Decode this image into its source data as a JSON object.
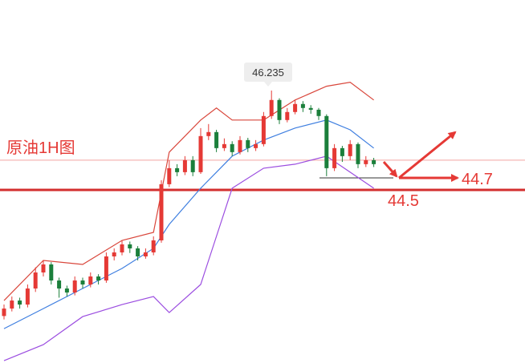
{
  "chart_data": {
    "type": "candlestick",
    "title": "原油1H图",
    "annotations": {
      "peak": "46.235",
      "target": "44.7",
      "support": "44.5"
    },
    "ylim": [
      41.48,
      47.815
    ],
    "up_color": "#e53935",
    "down_color": "#1b7f3b",
    "open": [
      42.3,
      42.43,
      42.57,
      42.5,
      42.78,
      43.06,
      43.2,
      42.92,
      42.78,
      42.71,
      42.92,
      42.85,
      42.99,
      42.92,
      43.34,
      43.41,
      43.55,
      43.48,
      43.34,
      43.41,
      43.62,
      44.6,
      44.88,
      44.81,
      45.02,
      44.81,
      45.44,
      45.51,
      45.23,
      45.3,
      45.16,
      45.37,
      45.23,
      45.3,
      45.79,
      46.07,
      45.72,
      45.86,
      46.0,
      45.93,
      45.9,
      45.79,
      44.88,
      45.23,
      45.09,
      45.3,
      44.95,
      45.02
    ],
    "high": [
      42.5,
      42.64,
      42.62,
      42.85,
      43.15,
      43.27,
      43.24,
      42.97,
      42.83,
      42.99,
      42.97,
      43.06,
      43.03,
      43.41,
      43.48,
      43.62,
      43.6,
      43.52,
      43.48,
      43.69,
      44.67,
      45.02,
      44.95,
      45.09,
      45.09,
      45.58,
      45.65,
      45.55,
      45.4,
      45.35,
      45.44,
      45.41,
      45.37,
      45.86,
      46.235,
      46.1,
      45.93,
      46.07,
      46.05,
      45.98,
      45.93,
      45.82,
      45.3,
      45.27,
      45.37,
      45.33,
      45.09,
      45.06
    ],
    "low": [
      42.24,
      42.38,
      42.43,
      42.45,
      42.72,
      42.99,
      42.85,
      42.62,
      42.64,
      42.66,
      42.78,
      42.8,
      42.85,
      42.88,
      43.27,
      43.36,
      43.4,
      43.27,
      43.3,
      43.36,
      43.58,
      44.55,
      44.74,
      44.76,
      44.74,
      44.78,
      45.37,
      45.16,
      45.18,
      45.09,
      45.12,
      45.16,
      45.18,
      45.26,
      45.74,
      45.65,
      45.68,
      45.82,
      45.86,
      45.83,
      45.72,
      44.74,
      44.83,
      44.99,
      45.02,
      44.88,
      44.9,
      44.9
    ],
    "close": [
      42.43,
      42.57,
      42.5,
      42.78,
      43.06,
      43.2,
      42.92,
      42.78,
      42.71,
      42.92,
      42.85,
      42.99,
      42.92,
      43.34,
      43.41,
      43.55,
      43.48,
      43.34,
      43.41,
      43.62,
      44.6,
      44.88,
      44.81,
      45.02,
      44.81,
      45.44,
      45.51,
      45.23,
      45.3,
      45.16,
      45.37,
      45.23,
      45.3,
      45.79,
      46.07,
      45.72,
      45.86,
      46.0,
      45.93,
      45.9,
      45.79,
      44.88,
      45.23,
      45.09,
      45.3,
      44.95,
      45.02,
      44.95
    ],
    "bands": [
      {
        "color": "#d9463b",
        "x": [
          0,
          5,
          10,
          15,
          19,
          21,
          25,
          27,
          29,
          33,
          37,
          41,
          44,
          47
        ],
        "values": [
          42.57,
          43.27,
          43.2,
          43.62,
          43.76,
          45.16,
          45.72,
          45.93,
          45.72,
          45.72,
          46.07,
          46.31,
          46.38,
          46.07
        ]
      },
      {
        "color": "#3f7fe0",
        "x": [
          0,
          5,
          10,
          15,
          19,
          21,
          25,
          27,
          29,
          33,
          37,
          41,
          44,
          47
        ],
        "values": [
          42.08,
          42.43,
          42.78,
          43.13,
          43.48,
          43.9,
          44.53,
          44.81,
          45.09,
          45.37,
          45.58,
          45.72,
          45.55,
          45.23
        ]
      },
      {
        "color": "#9b4de0",
        "x": [
          0,
          5,
          10,
          15,
          19,
          21,
          25,
          27,
          29,
          33,
          37,
          41,
          44,
          47
        ],
        "values": [
          41.52,
          41.8,
          42.29,
          42.5,
          42.64,
          42.36,
          42.85,
          43.69,
          44.53,
          44.88,
          44.95,
          45.09,
          44.81,
          44.53
        ]
      }
    ],
    "support_line": 44.5,
    "price_line": 45.02,
    "target_line": 44.71
  }
}
